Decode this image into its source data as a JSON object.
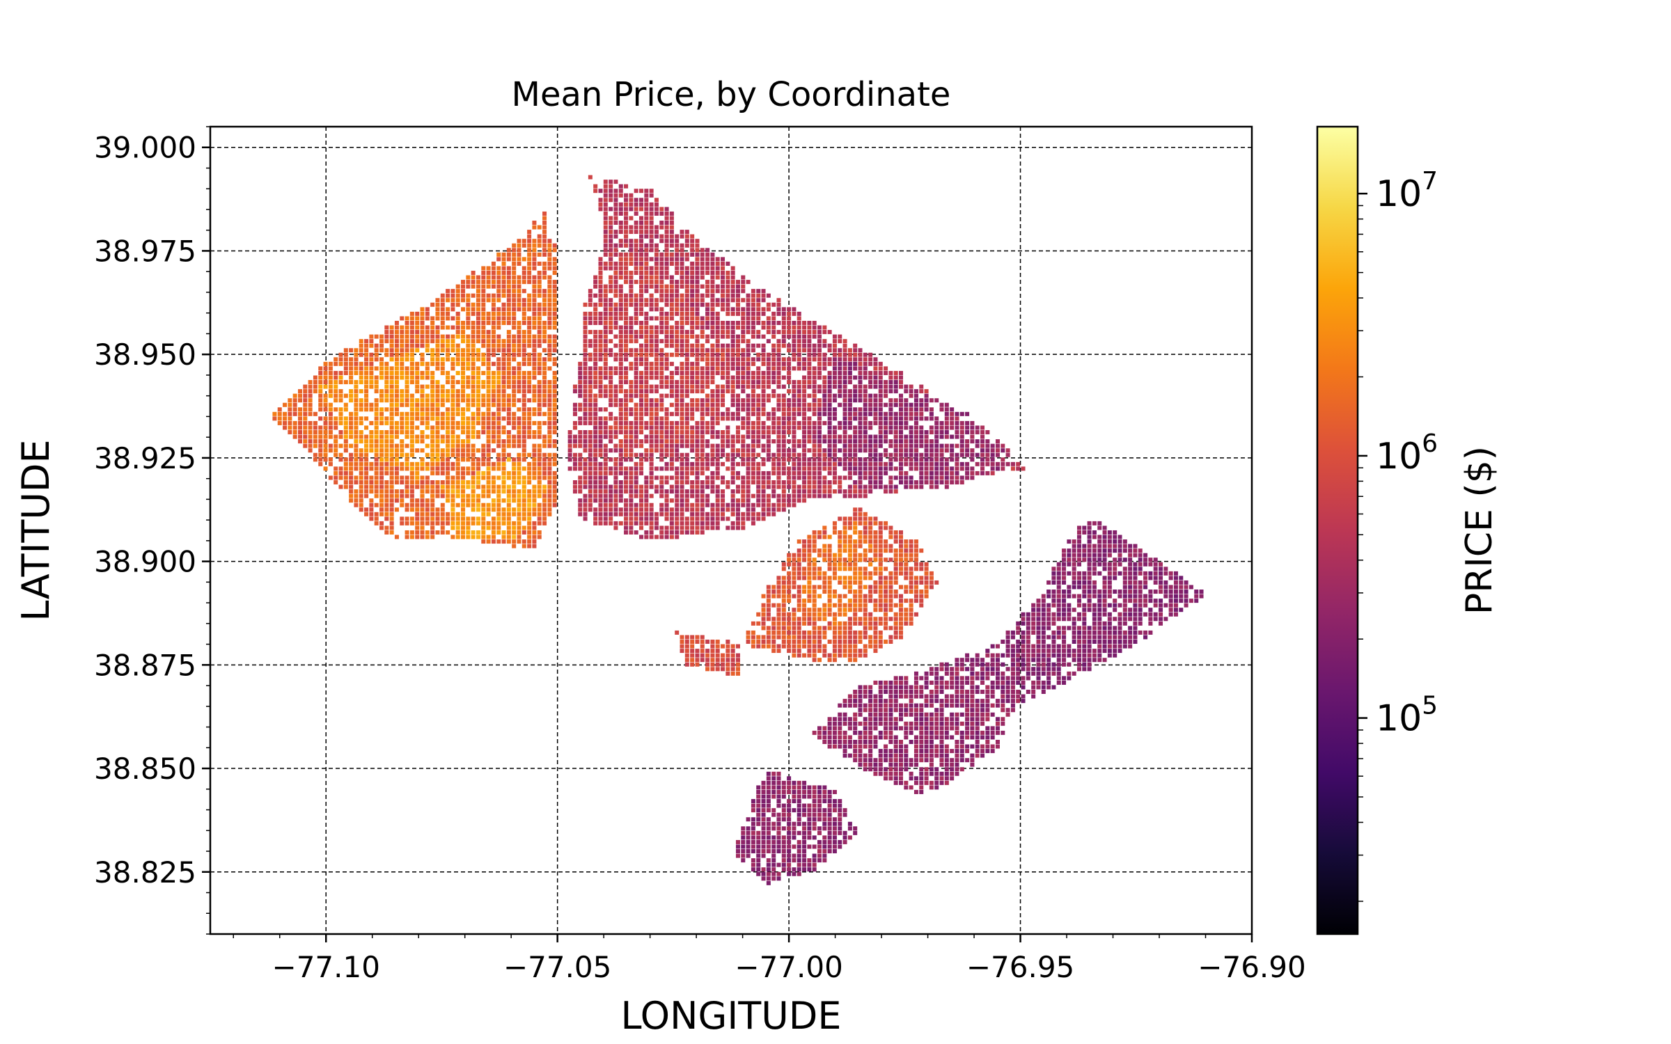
{
  "chart_data": {
    "type": "scatter",
    "title": "Mean Price, by Coordinate",
    "xlabel": "LONGITUDE",
    "ylabel": "LATITUDE",
    "xlim": [
      -77.125,
      -76.9
    ],
    "ylim": [
      38.81,
      39.005
    ],
    "grid": true,
    "x_ticks": [
      -77.1,
      -77.05,
      -77.0,
      -76.95,
      -76.9
    ],
    "x_tick_labels": [
      "−77.10",
      "−77.05",
      "−77.00",
      "−76.95",
      "−76.90"
    ],
    "y_ticks": [
      39.0,
      38.975,
      38.95,
      38.925,
      38.9,
      38.875,
      38.85,
      38.825
    ],
    "y_tick_labels": [
      "39.000",
      "38.975",
      "38.950",
      "38.925",
      "38.900",
      "38.875",
      "38.850",
      "38.825"
    ],
    "colorbar": {
      "label": "PRICE ($)",
      "scale": "log",
      "colormap": "inferno",
      "range": [
        15000,
        18000000
      ],
      "ticks": [
        100000,
        1000000,
        10000000
      ],
      "tick_base": "10",
      "tick_exponents": [
        "5",
        "6",
        "7"
      ]
    },
    "regions": [
      {
        "polygon": [
          [
            -77.112,
            38.935
          ],
          [
            -77.1,
            38.948
          ],
          [
            -77.09,
            38.955
          ],
          [
            -77.078,
            38.962
          ],
          [
            -77.068,
            38.97
          ],
          [
            -77.058,
            38.978
          ],
          [
            -77.053,
            38.985
          ],
          [
            -77.05,
            38.975
          ],
          [
            -77.05,
            38.95
          ],
          [
            -77.05,
            38.915
          ],
          [
            -77.055,
            38.903
          ],
          [
            -77.075,
            38.906
          ],
          [
            -77.085,
            38.905
          ],
          [
            -77.095,
            38.915
          ],
          [
            -77.105,
            38.928
          ]
        ],
        "price": 1500000
      },
      {
        "polygon": [
          [
            -77.102,
            38.942
          ],
          [
            -77.085,
            38.95
          ],
          [
            -77.07,
            38.955
          ],
          [
            -77.062,
            38.945
          ],
          [
            -77.068,
            38.93
          ],
          [
            -77.08,
            38.92
          ],
          [
            -77.095,
            38.928
          ]
        ],
        "price": 2800000
      },
      {
        "polygon": [
          [
            -77.075,
            38.918
          ],
          [
            -77.06,
            38.925
          ],
          [
            -77.052,
            38.918
          ],
          [
            -77.058,
            38.906
          ],
          [
            -77.072,
            38.905
          ]
        ],
        "price": 3500000
      },
      {
        "polygon": [
          [
            -77.043,
            38.993
          ],
          [
            -77.03,
            38.99
          ],
          [
            -77.02,
            38.978
          ],
          [
            -77.005,
            38.965
          ],
          [
            -76.99,
            38.955
          ],
          [
            -76.975,
            38.945
          ],
          [
            -76.958,
            38.932
          ],
          [
            -76.948,
            38.922
          ],
          [
            -76.965,
            38.92
          ],
          [
            -76.98,
            38.916
          ],
          [
            -76.995,
            38.915
          ],
          [
            -77.01,
            38.908
          ],
          [
            -77.03,
            38.905
          ],
          [
            -77.045,
            38.91
          ],
          [
            -77.048,
            38.925
          ],
          [
            -77.046,
            38.945
          ],
          [
            -77.042,
            38.96
          ],
          [
            -77.04,
            38.98
          ]
        ],
        "price": 500000
      },
      {
        "polygon": [
          [
            -77.04,
            38.975
          ],
          [
            -77.03,
            38.975
          ],
          [
            -77.02,
            38.96
          ],
          [
            -77.01,
            38.945
          ],
          [
            -77.02,
            38.93
          ],
          [
            -77.035,
            38.925
          ],
          [
            -77.045,
            38.94
          ],
          [
            -77.045,
            38.96
          ]
        ],
        "price": 650000
      },
      {
        "polygon": [
          [
            -76.99,
            38.95
          ],
          [
            -76.978,
            38.944
          ],
          [
            -76.96,
            38.935
          ],
          [
            -76.95,
            38.924
          ],
          [
            -76.965,
            38.918
          ],
          [
            -76.985,
            38.918
          ],
          [
            -76.995,
            38.93
          ]
        ],
        "price": 280000
      },
      {
        "polygon": [
          [
            -76.998,
            38.905
          ],
          [
            -76.985,
            38.913
          ],
          [
            -76.972,
            38.905
          ],
          [
            -76.968,
            38.895
          ],
          [
            -76.975,
            38.882
          ],
          [
            -76.985,
            38.876
          ],
          [
            -76.995,
            38.876
          ],
          [
            -77.01,
            38.88
          ],
          [
            -77.005,
            38.893
          ]
        ],
        "price": 1100000
      },
      {
        "polygon": [
          [
            -76.995,
            38.904
          ],
          [
            -76.985,
            38.91
          ],
          [
            -76.98,
            38.898
          ],
          [
            -76.988,
            38.884
          ],
          [
            -76.998,
            38.888
          ]
        ],
        "price": 1800000
      },
      {
        "polygon": [
          [
            -76.935,
            38.911
          ],
          [
            -76.92,
            38.9
          ],
          [
            -76.91,
            38.892
          ],
          [
            -76.925,
            38.88
          ],
          [
            -76.945,
            38.868
          ],
          [
            -76.96,
            38.862
          ],
          [
            -76.98,
            38.855
          ],
          [
            -76.985,
            38.865
          ],
          [
            -76.975,
            38.872
          ],
          [
            -76.955,
            38.88
          ],
          [
            -76.945,
            38.893
          ],
          [
            -76.94,
            38.905
          ]
        ],
        "price": 220000
      },
      {
        "polygon": [
          [
            -76.985,
            38.87
          ],
          [
            -76.965,
            38.875
          ],
          [
            -76.95,
            38.867
          ],
          [
            -76.955,
            38.855
          ],
          [
            -76.97,
            38.843
          ],
          [
            -76.985,
            38.85
          ],
          [
            -76.995,
            38.858
          ]
        ],
        "price": 260000
      },
      {
        "polygon": [
          [
            -77.005,
            38.85
          ],
          [
            -76.99,
            38.845
          ],
          [
            -76.985,
            38.835
          ],
          [
            -76.995,
            38.825
          ],
          [
            -77.005,
            38.822
          ],
          [
            -77.012,
            38.83
          ],
          [
            -77.008,
            38.842
          ]
        ],
        "price": 240000
      },
      {
        "polygon": [
          [
            -77.025,
            38.883
          ],
          [
            -77.01,
            38.88
          ],
          [
            -77.01,
            38.872
          ],
          [
            -77.022,
            38.875
          ]
        ],
        "price": 900000
      }
    ]
  }
}
